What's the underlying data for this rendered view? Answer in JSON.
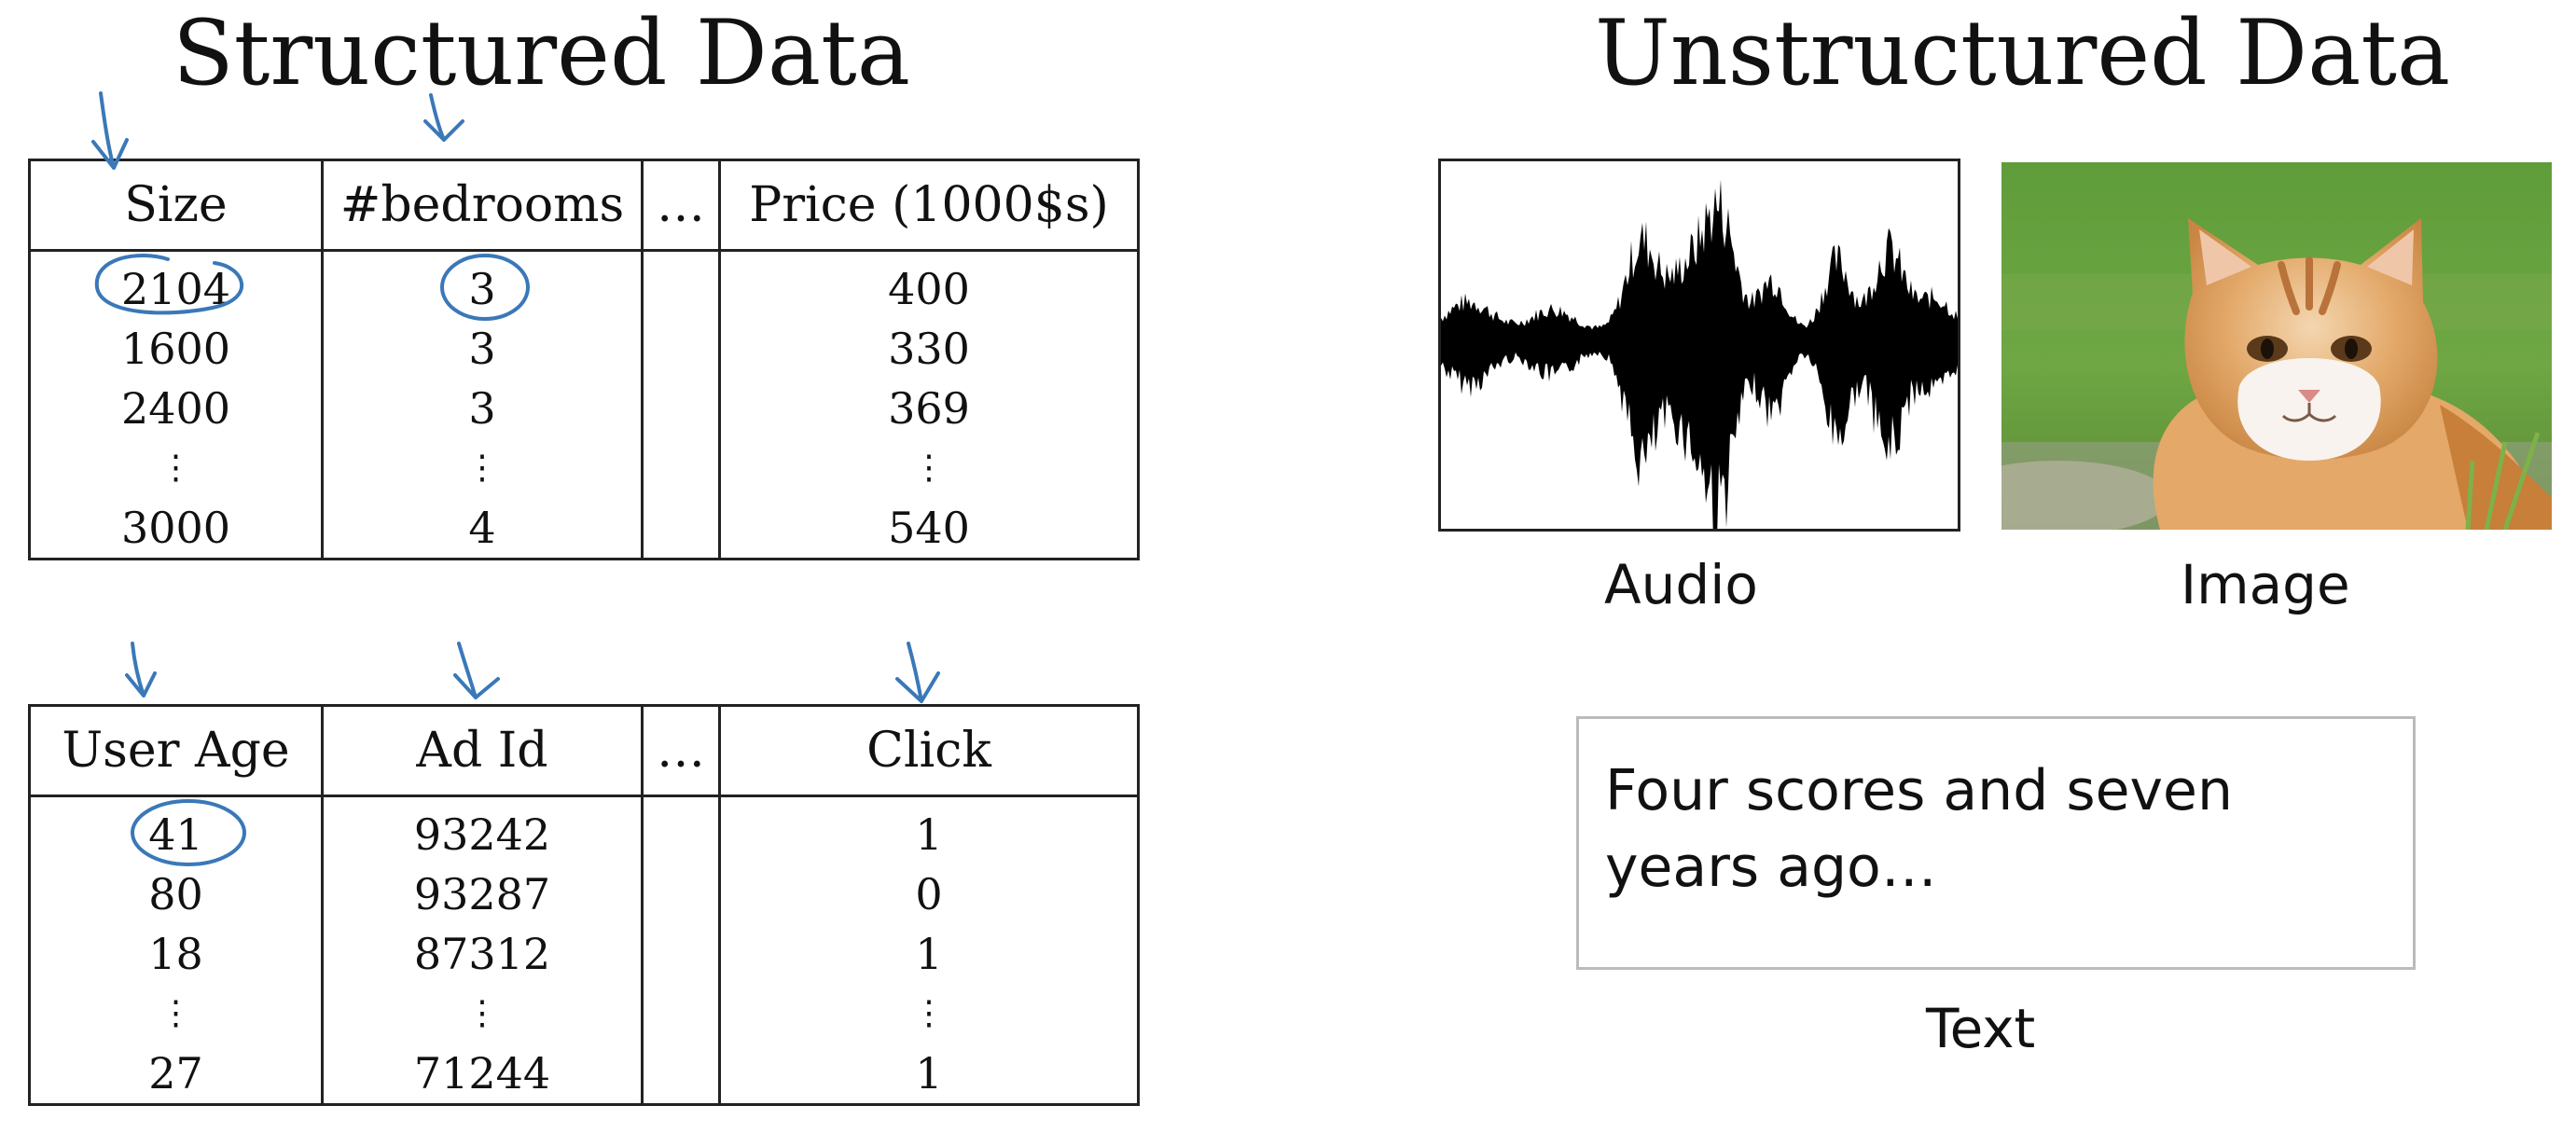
{
  "structured": {
    "title": "Structured Data",
    "housing_table": {
      "headers": [
        "Size",
        "#bedrooms",
        "…",
        "Price (1000$s)"
      ],
      "rows": [
        [
          "2104",
          "3",
          "",
          "400"
        ],
        [
          "1600",
          "3",
          "",
          "330"
        ],
        [
          "2400",
          "3",
          "",
          "369"
        ],
        [
          "⋮",
          "⋮",
          "",
          "⋮"
        ],
        [
          "3000",
          "4",
          "",
          "540"
        ]
      ]
    },
    "ads_table": {
      "headers": [
        "User Age",
        "Ad Id",
        "…",
        "Click"
      ],
      "rows": [
        [
          "41",
          "93242",
          "",
          "1"
        ],
        [
          "80",
          "93287",
          "",
          "0"
        ],
        [
          "18",
          "87312",
          "",
          "1"
        ],
        [
          "⋮",
          "⋮",
          "",
          "⋮"
        ],
        [
          "27",
          "71244",
          "",
          "1"
        ]
      ]
    }
  },
  "unstructured": {
    "title": "Unstructured Data",
    "audio_label": "Audio",
    "image_label": "Image",
    "text_label": "Text",
    "text_sample_line1": "Four scores and seven",
    "text_sample_line2": "years ago…"
  },
  "colors": {
    "annotation_ink": "#3a78b8",
    "table_border": "#222222",
    "waveform": "#000000"
  }
}
